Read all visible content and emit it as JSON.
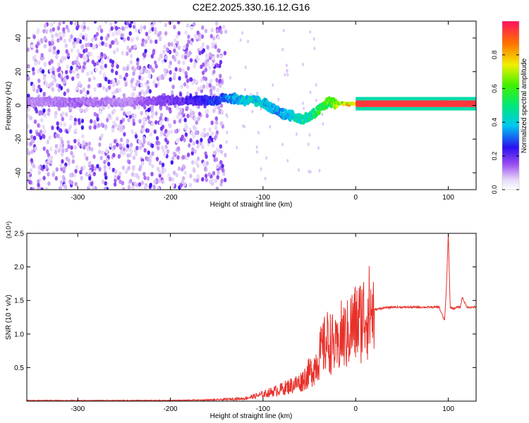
{
  "title": "C2E2.2025.330.16.12.G16",
  "chart_data": [
    {
      "type": "heatmap",
      "xlabel": "Height of straight line (km)",
      "ylabel": "Frequency (Hz)",
      "xlim": [
        -355,
        130
      ],
      "ylim": [
        -50,
        50
      ],
      "xticks": [
        -300,
        -200,
        -100,
        0,
        100
      ],
      "yticks": [
        -40,
        -20,
        0,
        20,
        40
      ],
      "colorbar": {
        "label": "Normalized spectral amplitude",
        "range": [
          0,
          1
        ],
        "ticks": [
          0.0,
          0.2,
          0.4,
          0.6,
          0.8
        ],
        "tick_labels": [
          "0.0",
          "0.2",
          "0.4",
          "0.6",
          "0.8"
        ]
      },
      "ridge": {
        "x": [
          -355,
          -300,
          -250,
          -200,
          -150,
          -140,
          -120,
          -100,
          -90,
          -80,
          -70,
          -60,
          -50,
          -40,
          -30,
          -20,
          0,
          50,
          90,
          95,
          100,
          130
        ],
        "freq": [
          2,
          2,
          2,
          3,
          3,
          5,
          3,
          2,
          -2,
          -5,
          -6,
          -8,
          -7,
          -3,
          2,
          1,
          1,
          1,
          1,
          3,
          1,
          1
        ],
        "amplitude": [
          0.12,
          0.15,
          0.12,
          0.2,
          0.3,
          0.35,
          0.45,
          0.45,
          0.4,
          0.4,
          0.45,
          0.5,
          0.5,
          0.6,
          0.65,
          0.75,
          0.85,
          0.95,
          0.95,
          0.9,
          0.95,
          0.95
        ]
      },
      "noise_region_x": [
        -355,
        -140
      ]
    },
    {
      "type": "line",
      "xlabel": "Height of straight line (km)",
      "ylabel": "SNR (10 * v/v)",
      "y_multiplier": "(x10⁴)",
      "xlim": [
        -355,
        130
      ],
      "ylim": [
        0,
        2.5
      ],
      "xticks": [
        -300,
        -200,
        -100,
        0,
        100
      ],
      "yticks": [
        0.5,
        1.0,
        1.5,
        2.0,
        2.5
      ],
      "ytick_labels": [
        "0.5",
        "1.0",
        "1.5",
        "2.0",
        "2.5"
      ],
      "color": "#e8302a",
      "series": [
        {
          "x": [
            -355,
            -250,
            -200,
            -150,
            -120,
            -100,
            -80,
            -60,
            -50,
            -45,
            -40,
            -35,
            -30,
            -25,
            -20,
            -15,
            -10,
            -5,
            0,
            5,
            10,
            20,
            30,
            40,
            50,
            70,
            90,
            96,
            98,
            100,
            102,
            105,
            110,
            113,
            115,
            120,
            130
          ],
          "y": [
            0.01,
            0.01,
            0.01,
            0.02,
            0.04,
            0.1,
            0.18,
            0.28,
            0.42,
            0.5,
            0.65,
            0.8,
            0.9,
            0.85,
            0.75,
            1.0,
            0.95,
            1.1,
            1.15,
            1.2,
            1.3,
            1.36,
            1.39,
            1.4,
            1.4,
            1.4,
            1.4,
            1.2,
            1.7,
            2.5,
            1.4,
            1.38,
            1.4,
            1.4,
            1.55,
            1.4,
            1.4
          ]
        }
      ]
    }
  ]
}
